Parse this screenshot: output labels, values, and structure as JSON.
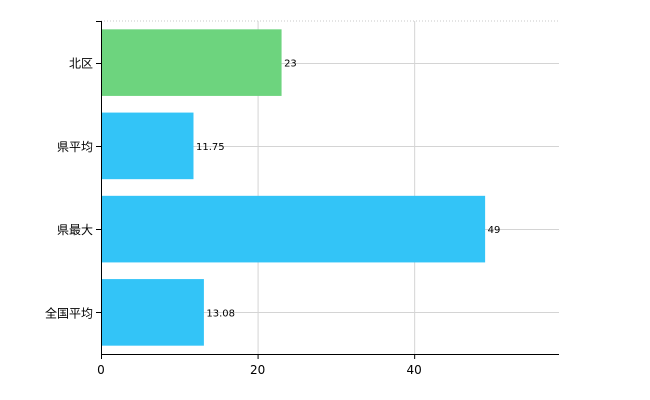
{
  "chart_data": {
    "type": "bar",
    "orientation": "horizontal",
    "categories": [
      "北区",
      "県平均",
      "県最大",
      "全国平均"
    ],
    "values": [
      23,
      11.75,
      49,
      13.08
    ],
    "data_labels": [
      "23",
      "11.75",
      "49",
      "13.08"
    ],
    "bar_colors": [
      "#6dd47e",
      "#33c4f7",
      "#33c4f7",
      "#33c4f7"
    ],
    "xlim": [
      0,
      58.5
    ],
    "xticks": [
      0,
      20,
      40
    ],
    "xtick_labels": [
      "0",
      "20",
      "40"
    ],
    "grid": true,
    "title": "",
    "xlabel": "",
    "ylabel": ""
  }
}
